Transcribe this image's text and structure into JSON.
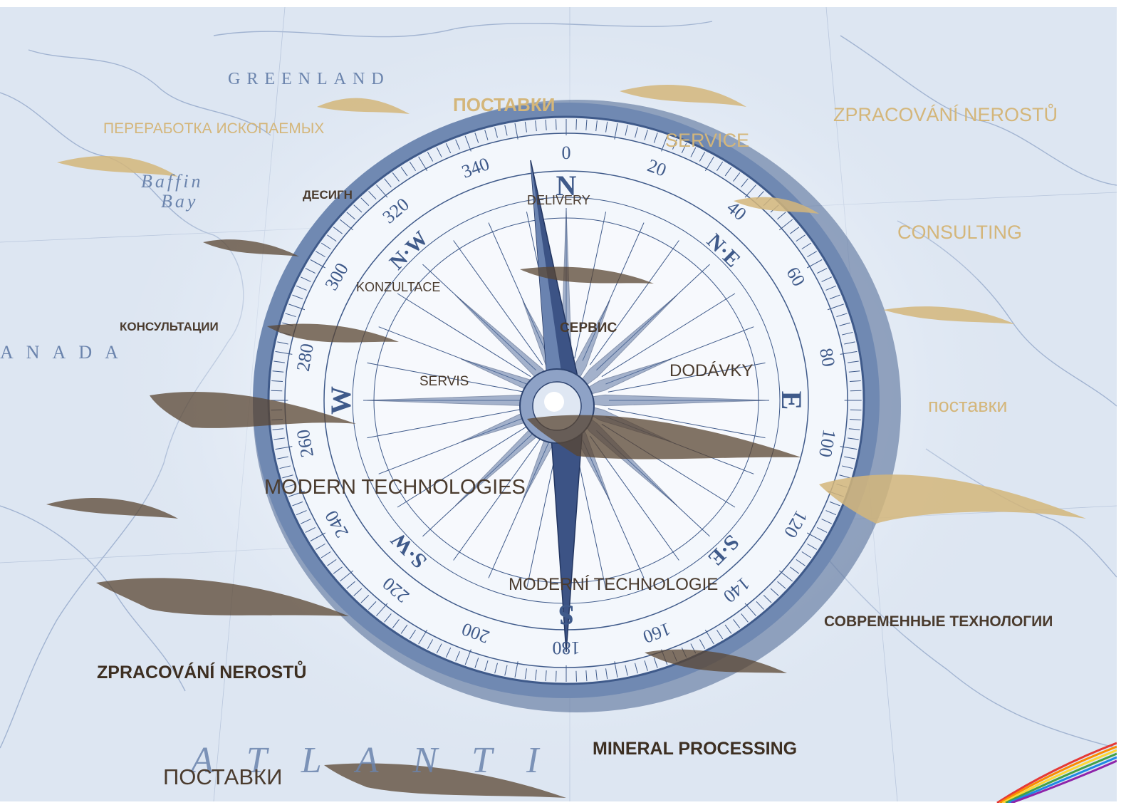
{
  "map": {
    "place_labels": [
      "GREENLAND",
      "Baffin",
      "Bay",
      "ANADA",
      "ATLANTI"
    ]
  },
  "compass": {
    "degrees": [
      "0",
      "20",
      "40",
      "60",
      "80",
      "100",
      "120",
      "140",
      "160",
      "180",
      "200",
      "220",
      "240",
      "260",
      "280",
      "300",
      "320",
      "340"
    ],
    "points": [
      "N",
      "NE",
      "E",
      "SE",
      "S",
      "SW",
      "W",
      "NW"
    ],
    "cardinal_labels": {
      "N": "N",
      "NE": "N·E",
      "E": "E",
      "SE": "S·E",
      "S": "S",
      "SW": "S·W",
      "W": "W",
      "NW": "N·W"
    }
  },
  "labels": {
    "l1": "ПЕРЕРАБОТКА ИСКОПАЕМЫХ",
    "l2": "ПОСТАВКИ",
    "l3": "ZPRACOVÁNÍ NEROSTŮ",
    "l4": "SERVICE",
    "l5": "ДЕСИГН",
    "l6": "DELIVERY",
    "l7": "CONSULTING",
    "l8": "KONZULTACE",
    "l9": "КОНСУЛЬТАЦИИ",
    "l10": "СЕРВИС",
    "l11": "DODÁVKY",
    "l12": "SERVIS",
    "l13": "поставки",
    "l14": "MODERN TECHNOLOGIES",
    "l15": "MODERNÍ TECHNOLOGIE",
    "l16": "СОВРЕМЕННЫЕ ТЕХНОЛОГИИ",
    "l17": "ZPRACOVÁNÍ NEROSTŮ",
    "l18": "MINERAL PROCESSING",
    "l19": "ПОСТАВКИ"
  },
  "colors": {
    "gold": "#d4b67a",
    "brown": "#4a3b2e",
    "map_blue": "#6b84ad",
    "compass_blue": "#3f5a8a"
  }
}
